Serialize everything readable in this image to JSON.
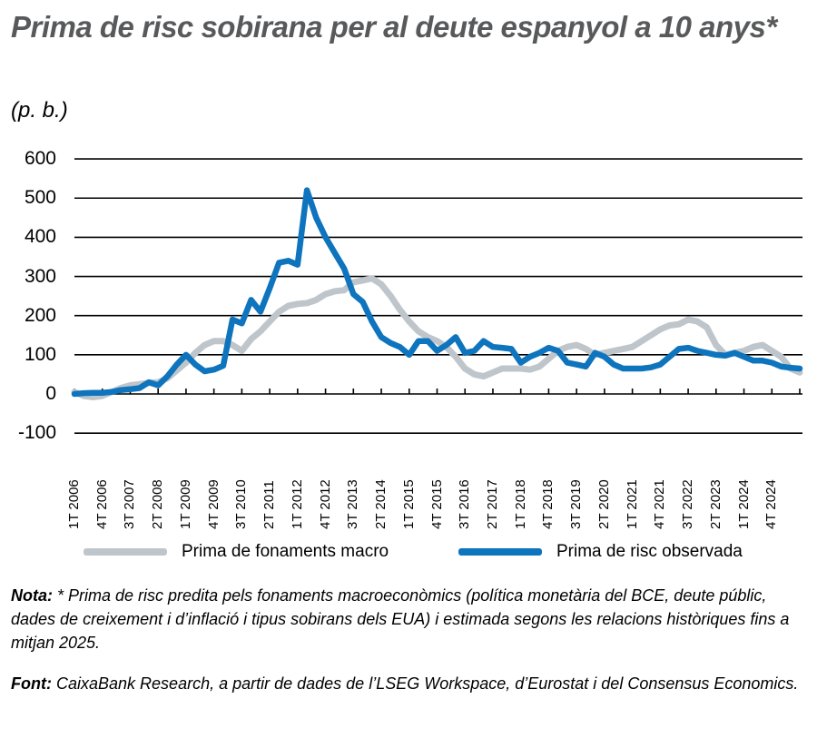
{
  "header": {
    "title": "Prima de risc sobirana per al deute espanyol a 10 anys*",
    "unit": "(p. b.)"
  },
  "legend": {
    "macro_label": "Prima de fonaments macro",
    "observed_label": "Prima de risc observada"
  },
  "colors": {
    "macro": "#bfc6cb",
    "observed": "#0e74bd",
    "grid": "#000000",
    "title": "#58595b"
  },
  "footer": {
    "note_label": "Nota:",
    "note_text": "* Prima de risc predita pels fonaments macroeconòmics (política monetària del BCE, deute públic, dades de creixement i d’inflació i tipus sobirans dels EUA) i estimada segons les relacions històriques fins a mitjan 2025.",
    "source_label": "Font:",
    "source_text": "CaixaBank Research, a partir de dades de l’LSEG Workspace, d’Eurostat i del Consensus Economics."
  },
  "chart_data": {
    "type": "line",
    "title": "Prima de risc sobirana per al deute espanyol a 10 anys*",
    "ylabel": "(p. b.)",
    "xlabel": "",
    "ylim": [
      -100,
      600
    ],
    "yticks": [
      600,
      500,
      400,
      300,
      200,
      100,
      0,
      -100
    ],
    "grid": true,
    "legend_position": "bottom",
    "xtick_labels": [
      "1T 2006",
      "4T 2006",
      "3T 2007",
      "2T 2008",
      "1T 2009",
      "4T 2009",
      "3T 2010",
      "2T 2011",
      "1T 2012",
      "4T 2012",
      "3T 2013",
      "2T 2014",
      "1T 2015",
      "4T 2015",
      "3T 2016",
      "2T 2017",
      "1T 2018",
      "4T 2018",
      "3T 2019",
      "2T 2020",
      "1T 2021",
      "4T 2021",
      "3T 2022",
      "2T 2023",
      "1T 2024",
      "4T 2024"
    ],
    "x_start": "1T 2006",
    "x_end": "3T 2025",
    "frequency": "quarterly",
    "series": [
      {
        "name": "Prima de fonaments macro",
        "color": "#bfc6cb",
        "values": [
          5,
          -5,
          -8,
          -5,
          5,
          15,
          22,
          25,
          28,
          30,
          40,
          60,
          80,
          105,
          125,
          135,
          135,
          125,
          110,
          140,
          160,
          185,
          210,
          225,
          230,
          232,
          240,
          255,
          262,
          265,
          285,
          290,
          295,
          280,
          250,
          215,
          185,
          160,
          145,
          135,
          120,
          95,
          65,
          50,
          45,
          55,
          65,
          65,
          65,
          62,
          70,
          90,
          110,
          120,
          125,
          115,
          100,
          105,
          110,
          115,
          120,
          135,
          150,
          165,
          175,
          178,
          190,
          185,
          170,
          125,
          100,
          105,
          110,
          120,
          125,
          110,
          95,
          65,
          55
        ]
      },
      {
        "name": "Prima de risc observada",
        "color": "#0e74bd",
        "values": [
          0,
          2,
          3,
          3,
          5,
          10,
          12,
          15,
          30,
          22,
          45,
          75,
          100,
          75,
          58,
          62,
          72,
          190,
          180,
          240,
          210,
          270,
          335,
          340,
          330,
          520,
          450,
          400,
          360,
          320,
          255,
          235,
          185,
          145,
          130,
          120,
          100,
          135,
          135,
          110,
          125,
          145,
          105,
          110,
          135,
          120,
          118,
          115,
          80,
          95,
          105,
          118,
          110,
          80,
          75,
          70,
          105,
          95,
          75,
          65,
          65,
          65,
          68,
          75,
          95,
          115,
          118,
          110,
          105,
          100,
          98,
          105,
          95,
          85,
          85,
          80,
          70,
          67,
          65
        ]
      }
    ]
  }
}
